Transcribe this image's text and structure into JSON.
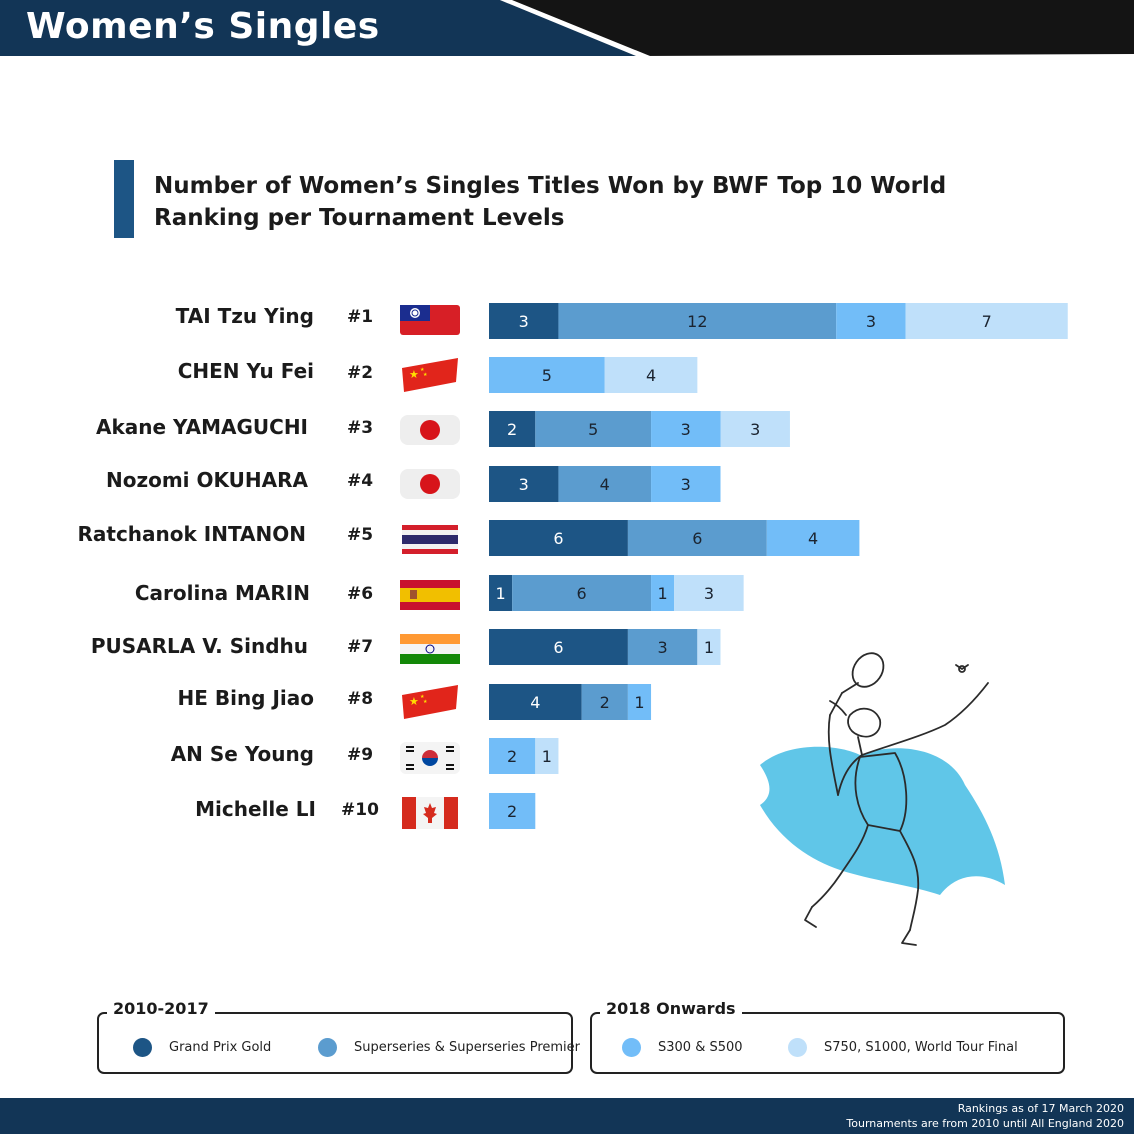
{
  "header": {
    "title": "Women’s Singles"
  },
  "colors": {
    "header_navy": "#123556",
    "header_black": "#141414",
    "grand_prix_gold": "#1d5585",
    "superseries": "#5b9ccf",
    "s300_s500": "#72bdf8",
    "s750_s1000_wtf": "#bfe0fa"
  },
  "chart_data": {
    "type": "bar",
    "orientation": "horizontal",
    "stacked": true,
    "title": "Number of Women’s Singles Titles Won by BWF Top 10 World Ranking per Tournament Levels",
    "categories": [
      "TAI Tzu Ying",
      "CHEN Yu Fei",
      "Akane YAMAGUCHI",
      "Nozomi OKUHARA",
      "Ratchanok INTANON",
      "Carolina MARIN",
      "PUSARLA V. Sindhu",
      "HE Bing Jiao",
      "AN Se Young",
      "Michelle LI"
    ],
    "ranks": [
      "#1",
      "#2",
      "#3",
      "#4",
      "#5",
      "#6",
      "#7",
      "#8",
      "#9",
      "#10"
    ],
    "flags": [
      "chinese-taipei-flag",
      "china-flag",
      "japan-flag",
      "japan-flag",
      "thailand-flag",
      "spain-flag",
      "india-flag",
      "china-flag",
      "korea-flag",
      "canada-flag"
    ],
    "series": [
      {
        "name": "Grand Prix Gold",
        "group": "2010-2017",
        "color": "#1d5585",
        "values": [
          3,
          0,
          2,
          3,
          6,
          1,
          6,
          4,
          0,
          0
        ]
      },
      {
        "name": "Superseries & Superseries Premier",
        "group": "2010-2017",
        "color": "#5b9ccf",
        "values": [
          12,
          0,
          5,
          4,
          6,
          6,
          3,
          2,
          0,
          0
        ]
      },
      {
        "name": "S300 & S500",
        "group": "2018 Onwards",
        "color": "#72bdf8",
        "values": [
          3,
          5,
          3,
          3,
          4,
          1,
          0,
          1,
          2,
          2
        ]
      },
      {
        "name": "S750, S1000, World Tour Final",
        "group": "2018 Onwards",
        "color": "#bfe0fa",
        "values": [
          7,
          4,
          3,
          0,
          0,
          3,
          1,
          0,
          1,
          0
        ]
      }
    ],
    "xlim": [
      0,
      25
    ],
    "grid": false,
    "legend": "bottom"
  },
  "legend": {
    "group_2010": {
      "title": "2010-2017",
      "items": [
        "Grand Prix Gold",
        "Superseries & Superseries Premier"
      ]
    },
    "group_2018": {
      "title": "2018 Onwards",
      "items": [
        "S300 & S500",
        "S750, S1000, World Tour Final"
      ]
    }
  },
  "footer": {
    "line1": "Rankings as of 17 March 2020",
    "line2": "Tournaments are from 2010 until All England 2020"
  }
}
